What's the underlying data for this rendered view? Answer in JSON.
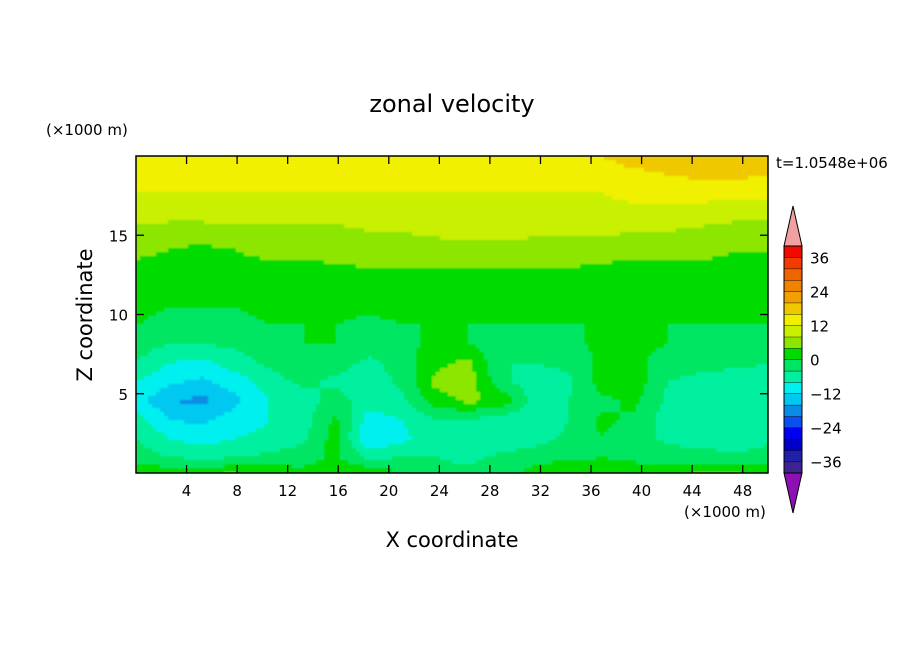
{
  "chart_data": {
    "type": "heatmap",
    "title": "zonal velocity",
    "xlabel": "X coordinate",
    "ylabel": "Z coordinate",
    "x_unit_label": "(×1000 m)",
    "y_unit_label": "(×1000 m)",
    "time_label": "t=1.0548e+06",
    "xlim": [
      0,
      50
    ],
    "ylim": [
      0,
      20
    ],
    "x_ticks": [
      4,
      8,
      12,
      16,
      20,
      24,
      28,
      32,
      36,
      40,
      44,
      48
    ],
    "y_ticks": [
      5,
      10,
      15
    ],
    "x_tick_labels": [
      "4",
      "8",
      "12",
      "16",
      "20",
      "24",
      "28",
      "32",
      "36",
      "40",
      "44",
      "48"
    ],
    "y_tick_labels": [
      "5",
      "10",
      "15"
    ],
    "colorbar": {
      "levels": [
        -40,
        -36,
        -32,
        -28,
        -24,
        -20,
        -16,
        -12,
        -8,
        -4,
        0,
        4,
        8,
        12,
        16,
        20,
        24,
        28,
        32,
        36,
        40
      ],
      "tick_values": [
        -36,
        -24,
        -12,
        0,
        12,
        24,
        36
      ],
      "tick_labels": [
        "−36",
        "−24",
        "−12",
        "0",
        "12",
        "24",
        "36"
      ],
      "colors": [
        "#3c2390",
        "#2020a8",
        "#0000c8",
        "#0000f0",
        "#0a50f0",
        "#0a8ce6",
        "#00c8f0",
        "#00f0f0",
        "#00f0a0",
        "#00e664",
        "#00dc00",
        "#8ce600",
        "#c8f000",
        "#f0f000",
        "#f0c800",
        "#f0a000",
        "#f08200",
        "#f06400",
        "#f03c00",
        "#f00a00"
      ],
      "under_color": "#8c10b4",
      "over_color": "#f0a0a0"
    },
    "field_rows_top_to_bottom": [
      [
        14,
        14,
        14,
        14,
        15,
        15,
        16,
        16,
        15,
        14,
        13,
        13,
        14,
        15,
        16,
        18,
        19,
        20,
        20,
        19
      ],
      [
        13,
        13,
        14,
        14,
        14,
        14,
        14,
        13,
        13,
        13,
        12,
        12,
        13,
        13,
        14,
        15,
        16,
        17,
        17,
        16
      ],
      [
        12,
        12,
        12,
        12,
        12,
        12,
        12,
        12,
        12,
        12,
        12,
        12,
        12,
        12,
        12,
        13,
        13,
        13,
        13,
        13
      ],
      [
        10,
        10,
        10,
        10,
        10,
        10,
        10,
        10,
        10,
        10,
        11,
        11,
        11,
        11,
        11,
        11,
        11,
        11,
        10,
        10
      ],
      [
        7,
        6,
        6,
        7,
        7,
        7,
        7,
        8,
        8,
        9,
        9,
        9,
        9,
        9,
        9,
        8,
        8,
        7,
        6,
        6
      ],
      [
        5,
        4,
        3,
        4,
        5,
        5,
        6,
        6,
        6,
        6,
        7,
        7,
        6,
        6,
        6,
        5,
        5,
        5,
        4,
        4
      ],
      [
        3,
        2,
        2,
        3,
        3,
        3,
        3,
        4,
        4,
        4,
        4,
        4,
        4,
        4,
        3,
        3,
        3,
        3,
        3,
        3
      ],
      [
        2,
        1,
        1,
        1,
        1,
        2,
        2,
        2,
        2,
        2,
        2,
        2,
        2,
        2,
        2,
        2,
        2,
        2,
        2,
        2
      ],
      [
        1,
        0,
        0,
        0,
        1,
        1,
        1,
        1,
        1,
        1,
        1,
        1,
        1,
        1,
        1,
        1,
        1,
        1,
        1,
        1
      ],
      [
        0,
        -1,
        -2,
        -1,
        0,
        0,
        0,
        -1,
        0,
        0,
        0,
        0,
        0,
        0,
        0,
        0,
        0,
        0,
        0,
        0
      ],
      [
        -2,
        -4,
        -4,
        -3,
        -1,
        0,
        0,
        -2,
        -1,
        1,
        0,
        -2,
        -2,
        -1,
        1,
        1,
        0,
        -1,
        -1,
        -2
      ],
      [
        -4,
        -8,
        -9,
        -6,
        -3,
        -1,
        -2,
        -5,
        -2,
        3,
        5,
        -4,
        -4,
        -3,
        1,
        1,
        -2,
        -3,
        -3,
        -4
      ],
      [
        -8,
        -11,
        -13,
        -10,
        -6,
        -3,
        -5,
        -7,
        -3,
        5,
        6,
        -3,
        -6,
        -5,
        2,
        2,
        -4,
        -5,
        -6,
        -6
      ],
      [
        -10,
        -16,
        -17,
        -13,
        -8,
        -6,
        -2,
        -6,
        -5,
        2,
        5,
        3,
        -6,
        -4,
        -1,
        1,
        -5,
        -6,
        -7,
        -8
      ],
      [
        -6,
        -12,
        -13,
        -10,
        -8,
        -6,
        1,
        -10,
        -8,
        -4,
        -4,
        -6,
        -7,
        -4,
        1,
        -1,
        -6,
        -7,
        -8,
        -6
      ],
      [
        -4,
        -8,
        -10,
        -8,
        -7,
        -5,
        2,
        -12,
        -9,
        -5,
        -6,
        -8,
        -6,
        -3,
        0,
        -2,
        -5,
        -6,
        -7,
        -5
      ],
      [
        -2,
        -4,
        -5,
        -4,
        -3,
        -2,
        1,
        -5,
        -4,
        -4,
        -5,
        -3,
        -1,
        -1,
        0,
        -1,
        -2,
        -2,
        -3,
        -2
      ],
      [
        4,
        4,
        5,
        5,
        4,
        2,
        3,
        5,
        1,
        -2,
        -3,
        -2,
        2,
        4,
        4,
        3,
        4,
        5,
        5,
        4
      ]
    ]
  }
}
